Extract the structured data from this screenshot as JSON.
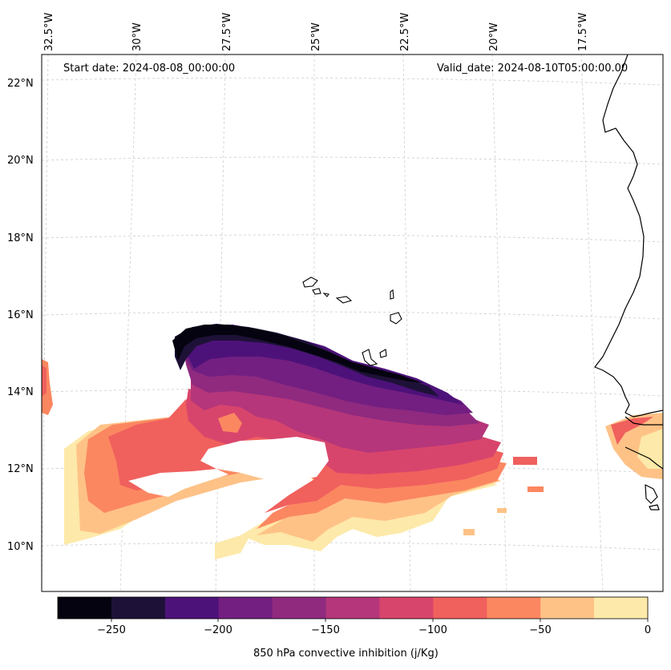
{
  "map": {
    "start_date": "Start date: 2024-08-08_00:00:00",
    "valid_date": "Valid_date: 2024-08-10T05:00:00.00",
    "lon_labels": [
      "32.5°W",
      "30°W",
      "27.5°W",
      "25°W",
      "22.5°W",
      "20°W",
      "17.5°W"
    ],
    "lat_labels": [
      "22°N",
      "20°N",
      "18°N",
      "16°N",
      "14°N",
      "12°N",
      "10°N"
    ],
    "variable": "850 hPa convective inhibition",
    "units": "j/Kg"
  },
  "colorbar": {
    "label": "850 hPa convective inhibition (j/Kg)",
    "ticks": [
      "−250",
      "−200",
      "−150",
      "−100",
      "−50",
      "0"
    ],
    "levels": [
      -275,
      -250,
      -225,
      -200,
      -175,
      -150,
      -125,
      -100,
      -75,
      -50,
      -25,
      0
    ],
    "colors": [
      "#05030f",
      "#1e1137",
      "#4d127a",
      "#721f81",
      "#8f2a7f",
      "#b5367a",
      "#d8456c",
      "#f0605d",
      "#fb8761",
      "#fec287",
      "#fde9a9"
    ]
  },
  "colors": {
    "coast": "#000000",
    "grid": "#cccccc"
  }
}
